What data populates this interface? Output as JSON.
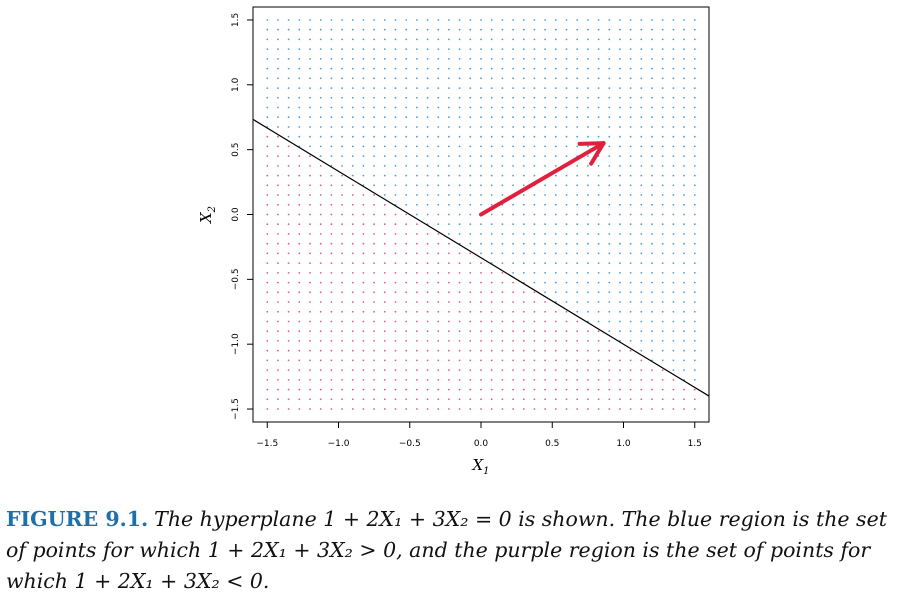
{
  "chart_data": {
    "type": "scatter",
    "title": "",
    "xlabel": "X",
    "xlabel_sub": "1",
    "ylabel": "X",
    "ylabel_sub": "2",
    "xlim": [
      -1.6,
      1.6
    ],
    "ylim": [
      -1.6,
      1.6
    ],
    "xticks": [
      -1.5,
      -1.0,
      -0.5,
      0.0,
      0.5,
      1.0,
      1.5
    ],
    "xtick_labels": [
      "−1.5",
      "−1.0",
      "−0.5",
      "0.0",
      "0.5",
      "1.0",
      "1.5"
    ],
    "yticks": [
      -1.5,
      -1.0,
      -0.5,
      0.0,
      0.5,
      1.0,
      1.5
    ],
    "ytick_labels": [
      "−1.5",
      "−1.0",
      "−0.5",
      "0.0",
      "0.5",
      "1.0",
      "1.5"
    ],
    "grid": false,
    "point_grid": {
      "start": -1.5,
      "end": 1.5,
      "step": 0.075
    },
    "hyperplane": {
      "beta0": 1,
      "beta1": 2,
      "beta2": 3
    },
    "regions": [
      {
        "name": "blue region",
        "condition": "1 + 2X1 + 3X2 > 0",
        "color": "#4a9fd8"
      },
      {
        "name": "purple region",
        "condition": "1 + 2X1 + 3X2 < 0",
        "color": "#e0607a"
      }
    ],
    "line_color": "#000000",
    "arrow": {
      "from": [
        0.0,
        0.0
      ],
      "to": [
        0.86,
        0.55
      ],
      "color": "#e0203d"
    }
  },
  "caption": {
    "label": "FIGURE 9.1.",
    "text": "The hyperplane 1 + 2X₁ + 3X₂ = 0 is shown. The blue region is the set of points for which 1 + 2X₁ + 3X₂ > 0, and the purple region is the set of points for which 1 + 2X₁ + 3X₂ < 0."
  }
}
